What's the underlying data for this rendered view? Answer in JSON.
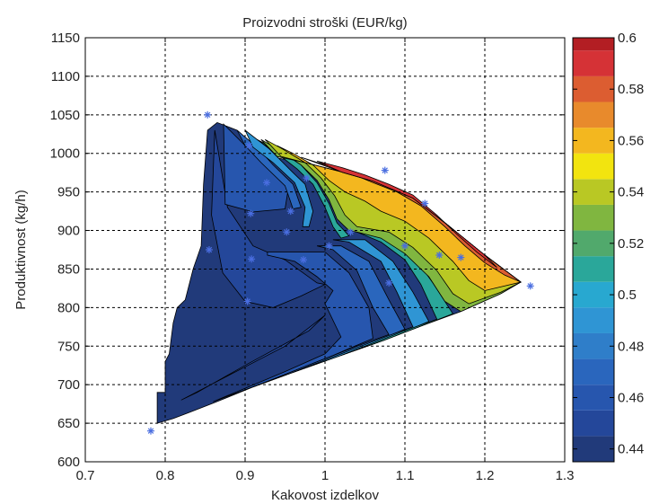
{
  "chart_data": {
    "type": "heatmap",
    "subtype": "filled-contour",
    "title": "Proizvodni stroški (EUR/kg)",
    "xlabel": "Kakovost izdelkov",
    "ylabel": "Produktivnost (kg/h)",
    "xlim": [
      0.7,
      1.3
    ],
    "ylim": [
      600,
      1150
    ],
    "x_ticks": [
      "0.7",
      "0.8",
      "0.9",
      "1",
      "1.1",
      "1.2",
      "1.3"
    ],
    "y_ticks": [
      "600",
      "650",
      "700",
      "750",
      "800",
      "850",
      "900",
      "950",
      "1000",
      "1050",
      "1100",
      "1150"
    ],
    "grid": true,
    "colorbar": {
      "range": [
        0.435,
        0.6
      ],
      "ticks": [
        "0.44",
        "0.46",
        "0.48",
        "0.5",
        "0.52",
        "0.54",
        "0.56",
        "0.58",
        "0.6"
      ],
      "levels": [
        0.435,
        0.445,
        0.455,
        0.465,
        0.475,
        0.485,
        0.495,
        0.505,
        0.515,
        0.525,
        0.535,
        0.545,
        0.555,
        0.565,
        0.575,
        0.585,
        0.595,
        0.6
      ],
      "colors": [
        "#213a7a",
        "#24479a",
        "#2756ae",
        "#2a66bd",
        "#2f7ec9",
        "#2f95d4",
        "#28a8d0",
        "#2aa79a",
        "#51a96c",
        "#80b640",
        "#b9c824",
        "#f2e40f",
        "#f3b71f",
        "#e88a2c",
        "#dc5d31",
        "#d53236",
        "#b31e23",
        "#7f1418"
      ]
    },
    "sample_points": [
      [
        0.782,
        640
      ],
      [
        0.853,
        1050
      ],
      [
        0.905,
        1010
      ],
      [
        0.927,
        962
      ],
      [
        0.977,
        968
      ],
      [
        0.957,
        925
      ],
      [
        0.907,
        922
      ],
      [
        0.855,
        875
      ],
      [
        0.908,
        863
      ],
      [
        0.952,
        898
      ],
      [
        1.005,
        880
      ],
      [
        1.032,
        898
      ],
      [
        1.075,
        978
      ],
      [
        1.125,
        935
      ],
      [
        1.1,
        880
      ],
      [
        1.143,
        868
      ],
      [
        1.17,
        865
      ],
      [
        1.08,
        832
      ],
      [
        1.257,
        828
      ],
      [
        0.973,
        862
      ],
      [
        0.903,
        808
      ]
    ],
    "regions": [
      {
        "level": 0.44,
        "value_range": [
          0.435,
          0.445
        ],
        "polygon": [
          [
            0.79,
            650
          ],
          [
            0.79,
            690
          ],
          [
            0.8,
            690
          ],
          [
            0.8,
            730
          ],
          [
            0.805,
            740
          ],
          [
            0.81,
            780
          ],
          [
            0.815,
            800
          ],
          [
            0.825,
            810
          ],
          [
            0.835,
            850
          ],
          [
            0.845,
            880
          ],
          [
            0.848,
            960
          ],
          [
            0.853,
            1030
          ],
          [
            0.865,
            1040
          ],
          [
            0.89,
            1030
          ],
          [
            0.91,
            1012
          ],
          [
            0.94,
            994
          ],
          [
            0.975,
            988
          ],
          [
            1.02,
            976
          ],
          [
            1.06,
            964
          ],
          [
            1.11,
            942
          ],
          [
            1.15,
            910
          ],
          [
            1.2,
            868
          ],
          [
            1.245,
            833
          ],
          [
            1.22,
            818
          ],
          [
            1.17,
            795
          ],
          [
            1.12,
            776
          ],
          [
            1.075,
            758
          ],
          [
            1.02,
            738
          ],
          [
            0.96,
            716
          ],
          [
            0.91,
            697
          ],
          [
            0.86,
            676
          ],
          [
            0.83,
            664
          ],
          [
            0.81,
            656
          ]
        ]
      },
      {
        "level": 0.45,
        "value_range": [
          0.445,
          0.455
        ],
        "polygon": [
          [
            0.862,
            1030
          ],
          [
            0.878,
            930
          ],
          [
            0.91,
            880
          ],
          [
            0.95,
            862
          ],
          [
            0.99,
            832
          ],
          [
            1.0,
            830
          ],
          [
            0.97,
            815
          ],
          [
            0.935,
            800
          ],
          [
            0.9,
            808
          ],
          [
            0.872,
            845
          ],
          [
            0.858,
            920
          ]
        ]
      },
      {
        "level": 0.45,
        "value_range": [
          0.445,
          0.455
        ],
        "polygon": [
          [
            0.82,
            680
          ],
          [
            0.95,
            750
          ],
          [
            1.0,
            790
          ],
          [
            0.98,
            770
          ],
          [
            0.9,
            725
          ],
          [
            0.84,
            690
          ]
        ]
      },
      {
        "level": 0.46,
        "value_range": [
          0.455,
          0.465
        ],
        "polygon": [
          [
            0.873,
            1038
          ],
          [
            0.9,
            1010
          ],
          [
            0.93,
            980
          ],
          [
            0.955,
            960
          ],
          [
            0.95,
            928
          ],
          [
            0.91,
            924
          ],
          [
            0.875,
            934
          ]
        ]
      },
      {
        "level": 0.46,
        "value_range": [
          0.455,
          0.465
        ],
        "polygon": [
          [
            0.86,
            678
          ],
          [
            0.95,
            717
          ],
          [
            1.0,
            740
          ],
          [
            1.02,
            762
          ],
          [
            1.0,
            805
          ],
          [
            1.01,
            822
          ],
          [
            0.99,
            840
          ],
          [
            0.962,
            860
          ],
          [
            0.928,
            868
          ],
          [
            0.928,
            872
          ],
          [
            0.965,
            872
          ],
          [
            1.0,
            872
          ],
          [
            1.03,
            845
          ],
          [
            1.055,
            800
          ],
          [
            1.06,
            760
          ],
          [
            1.01,
            738
          ],
          [
            0.93,
            705
          ]
        ]
      },
      {
        "level": 0.47,
        "value_range": [
          0.465,
          0.475
        ],
        "polygon": [
          [
            0.89,
            1030
          ],
          [
            0.915,
            1008
          ],
          [
            0.935,
            985
          ],
          [
            0.96,
            960
          ],
          [
            0.97,
            930
          ],
          [
            0.96,
            928
          ],
          [
            0.95,
            958
          ],
          [
            0.92,
            988
          ],
          [
            0.9,
            1010
          ]
        ]
      },
      {
        "level": 0.47,
        "value_range": [
          0.465,
          0.475
        ],
        "polygon": [
          [
            0.91,
            697
          ],
          [
            1.04,
            750
          ],
          [
            1.08,
            765
          ],
          [
            1.06,
            800
          ],
          [
            1.04,
            848
          ],
          [
            1.01,
            875
          ],
          [
            0.99,
            880
          ],
          [
            1.02,
            880
          ],
          [
            1.055,
            860
          ],
          [
            1.08,
            810
          ],
          [
            1.1,
            772
          ],
          [
            1.03,
            742
          ],
          [
            0.96,
            716
          ]
        ]
      },
      {
        "level": 0.49,
        "value_range": [
          0.485,
          0.495
        ],
        "polygon": [
          [
            0.9,
            1030
          ],
          [
            0.93,
            1006
          ],
          [
            0.96,
            975
          ],
          [
            0.975,
            960
          ],
          [
            0.985,
            925
          ],
          [
            0.98,
            905
          ],
          [
            0.972,
            905
          ],
          [
            0.975,
            930
          ],
          [
            0.962,
            962
          ],
          [
            0.935,
            988
          ],
          [
            0.91,
            1008
          ]
        ]
      },
      {
        "level": 0.49,
        "value_range": [
          0.485,
          0.495
        ],
        "polygon": [
          [
            0.96,
            716
          ],
          [
            1.07,
            760
          ],
          [
            1.11,
            775
          ],
          [
            1.09,
            820
          ],
          [
            1.07,
            860
          ],
          [
            1.03,
            885
          ],
          [
            1.01,
            888
          ],
          [
            1.05,
            888
          ],
          [
            1.085,
            860
          ],
          [
            1.11,
            820
          ],
          [
            1.13,
            782
          ],
          [
            1.075,
            758
          ],
          [
            1.02,
            738
          ]
        ]
      },
      {
        "level": 0.51,
        "value_range": [
          0.505,
          0.515
        ],
        "polygon": [
          [
            0.915,
            1018
          ],
          [
            0.94,
            1000
          ],
          [
            0.965,
            980
          ],
          [
            0.985,
            960
          ],
          [
            1.0,
            930
          ],
          [
            1.01,
            905
          ],
          [
            1.02,
            890
          ],
          [
            1.03,
            893
          ],
          [
            1.015,
            910
          ],
          [
            1.005,
            935
          ],
          [
            0.99,
            962
          ],
          [
            0.97,
            985
          ],
          [
            0.945,
            1002
          ]
        ]
      },
      {
        "level": 0.51,
        "value_range": [
          0.505,
          0.515
        ],
        "polygon": [
          [
            1.02,
            738
          ],
          [
            1.1,
            770
          ],
          [
            1.14,
            785
          ],
          [
            1.12,
            830
          ],
          [
            1.1,
            862
          ],
          [
            1.07,
            885
          ],
          [
            1.04,
            898
          ],
          [
            1.08,
            892
          ],
          [
            1.11,
            868
          ],
          [
            1.135,
            832
          ],
          [
            1.16,
            792
          ],
          [
            1.12,
            776
          ],
          [
            1.075,
            758
          ]
        ]
      },
      {
        "level": 0.53,
        "value_range": [
          0.525,
          0.535
        ],
        "polygon": [
          [
            0.92,
            1018
          ],
          [
            0.945,
            1003
          ],
          [
            0.97,
            985
          ],
          [
            0.99,
            965
          ],
          [
            1.005,
            940
          ],
          [
            1.015,
            915
          ],
          [
            1.03,
            900
          ],
          [
            1.04,
            898
          ],
          [
            1.07,
            890
          ],
          [
            1.1,
            870
          ],
          [
            1.13,
            840
          ],
          [
            1.15,
            808
          ],
          [
            1.17,
            795
          ],
          [
            1.22,
            818
          ],
          [
            1.245,
            833
          ],
          [
            1.2,
            868
          ],
          [
            1.15,
            910
          ],
          [
            1.11,
            942
          ],
          [
            1.06,
            964
          ],
          [
            1.02,
            976
          ],
          [
            0.975,
            988
          ],
          [
            0.94,
            996
          ]
        ]
      },
      {
        "level": 0.54,
        "value_range": [
          0.535,
          0.545
        ],
        "polygon": [
          [
            0.925,
            1018
          ],
          [
            0.95,
            1004
          ],
          [
            0.975,
            988
          ],
          [
            0.995,
            968
          ],
          [
            1.012,
            945
          ],
          [
            1.025,
            920
          ],
          [
            1.04,
            905
          ],
          [
            1.08,
            898
          ],
          [
            1.11,
            878
          ],
          [
            1.14,
            848
          ],
          [
            1.16,
            818
          ],
          [
            1.18,
            805
          ],
          [
            1.22,
            820
          ],
          [
            1.245,
            833
          ],
          [
            1.2,
            868
          ],
          [
            1.15,
            910
          ],
          [
            1.11,
            942
          ],
          [
            1.06,
            964
          ],
          [
            1.02,
            976
          ],
          [
            0.975,
            988
          ],
          [
            0.945,
            996
          ]
        ]
      },
      {
        "level": 0.56,
        "value_range": [
          0.555,
          0.565
        ],
        "polygon": [
          [
            0.94,
            1010
          ],
          [
            0.96,
            1000
          ],
          [
            0.985,
            985
          ],
          [
            1.005,
            965
          ],
          [
            1.025,
            950
          ],
          [
            1.05,
            938
          ],
          [
            1.07,
            925
          ],
          [
            1.1,
            912
          ],
          [
            1.13,
            890
          ],
          [
            1.16,
            860
          ],
          [
            1.18,
            835
          ],
          [
            1.2,
            822
          ],
          [
            1.245,
            833
          ],
          [
            1.2,
            868
          ],
          [
            1.15,
            910
          ],
          [
            1.11,
            942
          ],
          [
            1.06,
            964
          ],
          [
            1.02,
            976
          ],
          [
            0.975,
            988
          ]
        ]
      },
      {
        "level": 0.58,
        "value_range": [
          0.575,
          0.585
        ],
        "polygon": [
          [
            0.97,
            995
          ],
          [
            1.0,
            985
          ],
          [
            1.03,
            975
          ],
          [
            1.06,
            962
          ],
          [
            1.09,
            950
          ],
          [
            1.12,
            932
          ],
          [
            1.15,
            905
          ],
          [
            1.175,
            880
          ],
          [
            1.2,
            858
          ],
          [
            1.225,
            842
          ],
          [
            1.245,
            833
          ],
          [
            1.2,
            868
          ],
          [
            1.15,
            910
          ],
          [
            1.11,
            942
          ],
          [
            1.06,
            964
          ],
          [
            1.02,
            976
          ]
        ]
      },
      {
        "level": 0.59,
        "value_range": [
          0.585,
          0.595
        ],
        "polygon": [
          [
            0.99,
            990
          ],
          [
            1.02,
            982
          ],
          [
            1.05,
            972
          ],
          [
            1.08,
            960
          ],
          [
            1.11,
            946
          ],
          [
            1.14,
            920
          ],
          [
            1.165,
            895
          ],
          [
            1.19,
            872
          ],
          [
            1.215,
            852
          ],
          [
            1.2,
            868
          ],
          [
            1.15,
            910
          ],
          [
            1.11,
            942
          ],
          [
            1.06,
            964
          ],
          [
            1.02,
            976
          ]
        ]
      }
    ]
  }
}
